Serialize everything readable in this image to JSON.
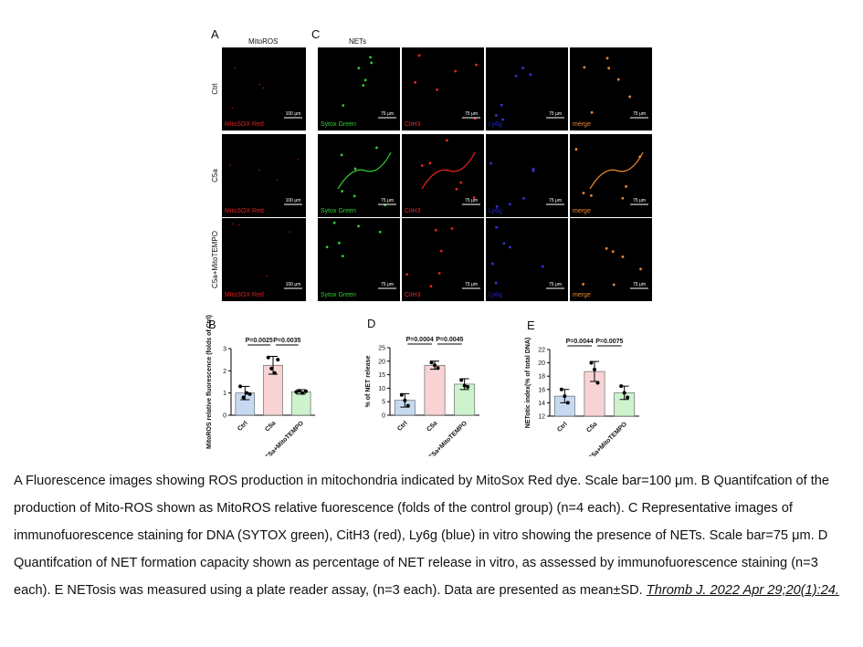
{
  "figure": {
    "panel_a": {
      "label": "A",
      "title": "MitoROS",
      "rows": [
        "Ctrl",
        "C5a",
        "C5a+MitoTEMPO"
      ],
      "stain": "MitoSOX Red",
      "scale": "100 μm"
    },
    "panel_c": {
      "label": "C",
      "title": "NETs",
      "columns": [
        "Sytox Green",
        "CitH3",
        "Ly6g",
        "merge"
      ],
      "scale": "75 μm"
    }
  },
  "chart_data": [
    {
      "type": "bar",
      "label": "B",
      "y_label": "MitoROS relative fluorescence (folds of Ctrl)",
      "categories": [
        "Ctrl",
        "C5a",
        "C5a+MitoTEMPO"
      ],
      "values": [
        1.0,
        2.25,
        1.05
      ],
      "errors": [
        0.3,
        0.4,
        0.1
      ],
      "points": [
        [
          1.3,
          0.8,
          1.0,
          0.95
        ],
        [
          2.6,
          2.1,
          1.9,
          2.5
        ],
        [
          1.05,
          1.1,
          1.0,
          1.08
        ]
      ],
      "colors": [
        "#c6d9f1",
        "#f8d3d3",
        "#cdf3cd"
      ],
      "ylim": [
        0,
        3
      ],
      "yticks": [
        0,
        1,
        2,
        3
      ],
      "annotations": [
        "P=0.0025",
        "P=0.0035"
      ]
    },
    {
      "type": "bar",
      "label": "D",
      "y_label": "% of NET release",
      "categories": [
        "Ctrl",
        "C5a",
        "C5a+MitoTEMPO"
      ],
      "values": [
        5.5,
        18.5,
        11.5
      ],
      "errors": [
        2.5,
        1.5,
        2
      ],
      "points": [
        [
          7.5,
          5.5,
          3.5
        ],
        [
          19.5,
          18.5,
          17.5
        ],
        [
          13,
          11,
          10.5
        ]
      ],
      "colors": [
        "#c6d9f1",
        "#f8d3d3",
        "#cdf3cd"
      ],
      "ylim": [
        0,
        25
      ],
      "yticks": [
        0,
        5,
        10,
        15,
        20,
        25
      ],
      "annotations": [
        "P=0.0004",
        "P=0.0045"
      ]
    },
    {
      "type": "bar",
      "label": "E",
      "y_label": "NETotic index(% of total DNA)",
      "categories": [
        "Ctrl",
        "C5a",
        "C5a+MitoTEMPO"
      ],
      "values": [
        15,
        18.7,
        15.5
      ],
      "errors": [
        1,
        1.5,
        1
      ],
      "points": [
        [
          16,
          15,
          14
        ],
        [
          20,
          19,
          17
        ],
        [
          16.5,
          15.5,
          14.8
        ]
      ],
      "colors": [
        "#c6d9f1",
        "#f8d3d3",
        "#cdf3cd"
      ],
      "ylim": [
        12,
        22
      ],
      "yticks": [
        12,
        14,
        16,
        18,
        20,
        22
      ],
      "annotations": [
        "P=0.0044",
        "P=0.0075"
      ]
    }
  ],
  "caption": {
    "text": "A Fluorescence images showing ROS production in mitochondria indicated by MitoSox Red dye. Scale bar=100 μm. B Quantifcation of the production of Mito-ROS shown as MitoROS relative fuorescence (folds of the control group) (n=4 each). C Representative images of immunofuorescence staining for DNA (SYTOX green), CitH3 (red), Ly6g (blue) in vitro showing the presence of NETs. Scale bar=75 μm. D Quantifcation of NET formation capacity shown as percentage of NET release in vitro, as assessed by immunofuorescence staining (n=3 each). E NETosis was measured using a plate reader assay, (n=3 each). Data are presented as mean±SD.",
    "citation": "Thromb J. 2022 Apr 29;20(1):24."
  }
}
